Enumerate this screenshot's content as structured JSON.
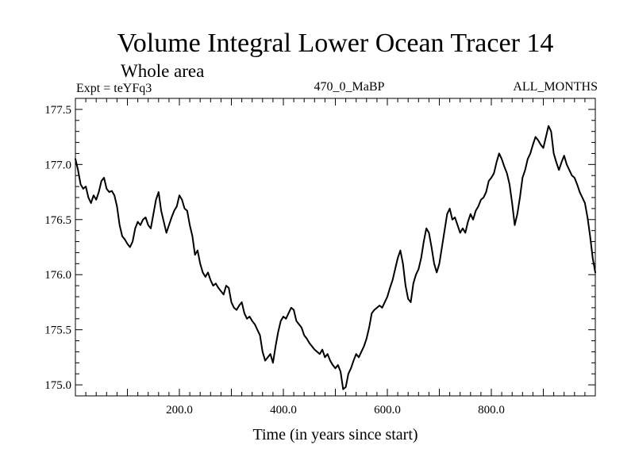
{
  "chart_data": {
    "type": "line",
    "title": "Volume Integral Lower Ocean Tracer 14",
    "subtitle": "Whole area",
    "expt_label": "Expt = teYFq3",
    "center_label": "470_0_MaBP",
    "right_label": "ALL_MONTHS",
    "xlabel": "Time (in years since start)",
    "ylabel": "",
    "xlim": [
      0,
      1000
    ],
    "ylim": [
      174.9,
      177.6
    ],
    "xticks": [
      200.0,
      400.0,
      600.0,
      800.0
    ],
    "xtick_labels": [
      "200.0",
      "400.0",
      "600.0",
      "800.0"
    ],
    "yticks": [
      175.0,
      175.5,
      176.0,
      176.5,
      177.0,
      177.5
    ],
    "ytick_labels": [
      "175.0",
      "175.5",
      "176.0",
      "176.5",
      "177.0",
      "177.5"
    ],
    "grid": false,
    "series": [
      {
        "name": "Volume Integral Lower Ocean Tracer 14",
        "color": "#000000",
        "x": [
          0,
          5,
          10,
          15,
          20,
          25,
          30,
          35,
          40,
          45,
          50,
          55,
          60,
          65,
          70,
          75,
          80,
          85,
          90,
          95,
          100,
          105,
          110,
          115,
          120,
          125,
          130,
          135,
          140,
          145,
          150,
          155,
          160,
          165,
          170,
          175,
          180,
          185,
          190,
          195,
          200,
          205,
          210,
          215,
          220,
          225,
          230,
          235,
          240,
          245,
          250,
          255,
          260,
          265,
          270,
          275,
          280,
          285,
          290,
          295,
          300,
          305,
          310,
          315,
          320,
          325,
          330,
          335,
          340,
          345,
          350,
          355,
          360,
          365,
          370,
          375,
          380,
          385,
          390,
          395,
          400,
          405,
          410,
          415,
          420,
          425,
          430,
          435,
          440,
          445,
          450,
          455,
          460,
          465,
          470,
          475,
          480,
          485,
          490,
          495,
          500,
          505,
          510,
          515,
          520,
          525,
          530,
          535,
          540,
          545,
          550,
          555,
          560,
          565,
          570,
          575,
          580,
          585,
          590,
          595,
          600,
          605,
          610,
          615,
          620,
          625,
          630,
          635,
          640,
          645,
          650,
          655,
          660,
          665,
          670,
          675,
          680,
          685,
          690,
          695,
          700,
          705,
          710,
          715,
          720,
          725,
          730,
          735,
          740,
          745,
          750,
          755,
          760,
          765,
          770,
          775,
          780,
          785,
          790,
          795,
          800,
          805,
          810,
          815,
          820,
          825,
          830,
          835,
          840,
          845,
          850,
          855,
          860,
          865,
          870,
          875,
          880,
          885,
          890,
          895,
          900,
          905,
          910,
          915,
          920,
          925,
          930,
          935,
          940,
          945,
          950,
          955,
          960,
          965,
          970,
          975,
          980,
          985,
          990,
          995,
          1000
        ],
        "values": [
          177.05,
          176.95,
          176.82,
          176.78,
          176.8,
          176.7,
          176.65,
          176.72,
          176.68,
          176.75,
          176.85,
          176.88,
          176.78,
          176.75,
          176.76,
          176.72,
          176.62,
          176.45,
          176.35,
          176.32,
          176.28,
          176.25,
          176.3,
          176.42,
          176.48,
          176.45,
          176.5,
          176.52,
          176.45,
          176.42,
          176.55,
          176.68,
          176.75,
          176.58,
          176.48,
          176.38,
          176.45,
          176.52,
          176.58,
          176.62,
          176.72,
          176.68,
          176.6,
          176.58,
          176.45,
          176.35,
          176.18,
          176.22,
          176.1,
          176.02,
          175.98,
          176.02,
          175.95,
          175.9,
          175.92,
          175.88,
          175.85,
          175.82,
          175.9,
          175.88,
          175.75,
          175.7,
          175.68,
          175.72,
          175.75,
          175.65,
          175.6,
          175.62,
          175.58,
          175.55,
          175.5,
          175.45,
          175.3,
          175.22,
          175.25,
          175.28,
          175.2,
          175.35,
          175.48,
          175.58,
          175.62,
          175.6,
          175.65,
          175.7,
          175.68,
          175.58,
          175.55,
          175.52,
          175.45,
          175.42,
          175.38,
          175.35,
          175.32,
          175.3,
          175.28,
          175.32,
          175.25,
          175.28,
          175.22,
          175.18,
          175.15,
          175.18,
          175.12,
          174.96,
          174.98,
          175.1,
          175.15,
          175.22,
          175.28,
          175.25,
          175.3,
          175.35,
          175.42,
          175.52,
          175.65,
          175.68,
          175.7,
          175.72,
          175.7,
          175.75,
          175.8,
          175.88,
          175.95,
          176.05,
          176.15,
          176.22,
          176.1,
          175.9,
          175.78,
          175.75,
          175.92,
          176.0,
          176.05,
          176.15,
          176.3,
          176.42,
          176.38,
          176.25,
          176.1,
          176.02,
          176.1,
          176.25,
          176.4,
          176.55,
          176.6,
          176.5,
          176.52,
          176.45,
          176.38,
          176.42,
          176.38,
          176.48,
          176.55,
          176.5,
          176.58,
          176.62,
          176.68,
          176.7,
          176.75,
          176.85,
          176.88,
          176.92,
          177.02,
          177.1,
          177.05,
          176.98,
          176.92,
          176.82,
          176.65,
          176.45,
          176.55,
          176.7,
          176.88,
          176.95,
          177.05,
          177.1,
          177.18,
          177.25,
          177.22,
          177.18,
          177.15,
          177.25,
          177.35,
          177.3,
          177.1,
          177.02,
          176.95,
          177.02,
          177.08,
          177.0,
          176.95,
          176.9,
          176.88,
          176.82,
          176.75,
          176.7,
          176.65,
          176.52,
          176.35,
          176.15,
          176.02
        ]
      }
    ]
  }
}
